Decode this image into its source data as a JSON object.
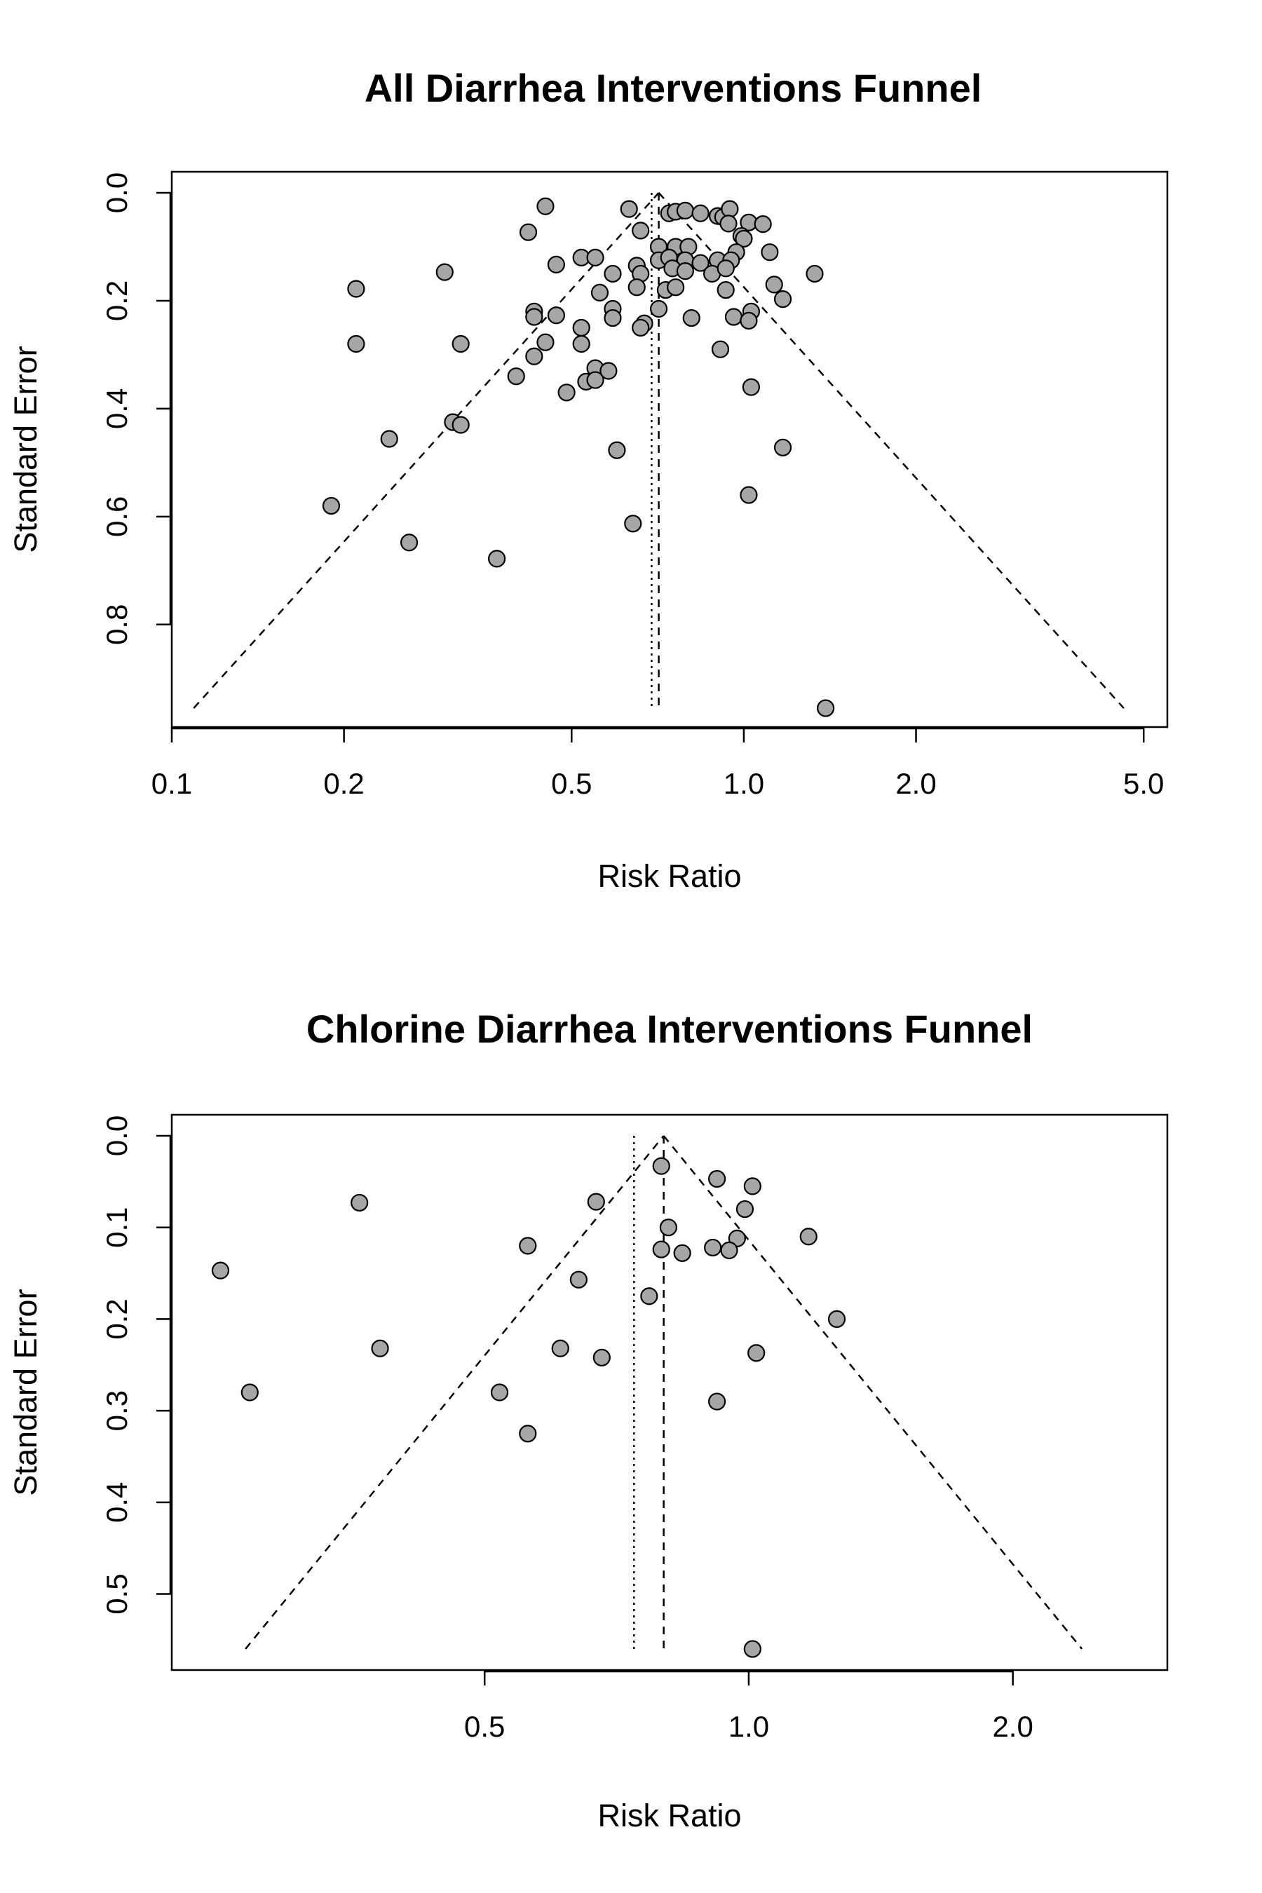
{
  "chart_data": [
    {
      "type": "scatter",
      "title": "All Diarrhea Interventions Funnel",
      "xlabel": "Risk Ratio",
      "ylabel": "Standard Error",
      "x_scale": "log",
      "y_reversed": true,
      "xlim": [
        0.1,
        5.5
      ],
      "ylim": [
        0,
        0.99
      ],
      "x_ticks": [
        0.1,
        0.2,
        0.5,
        1.0,
        2.0,
        5.0
      ],
      "x_tick_labels": [
        "0.1",
        "0.2",
        "0.5",
        "1.0",
        "2.0",
        "5.0"
      ],
      "y_ticks": [
        0.0,
        0.2,
        0.4,
        0.6,
        0.8
      ],
      "y_tick_labels": [
        "0.0",
        "0.2",
        "0.4",
        "0.6",
        "0.8"
      ],
      "pooled_estimate": 0.71,
      "reference_line": 0.69,
      "funnel_se_max": 0.955,
      "point_color": "#a6a6a6",
      "points": [
        {
          "x": 0.45,
          "y": 0.025
        },
        {
          "x": 0.63,
          "y": 0.03
        },
        {
          "x": 0.74,
          "y": 0.038
        },
        {
          "x": 0.76,
          "y": 0.035
        },
        {
          "x": 0.79,
          "y": 0.033
        },
        {
          "x": 0.84,
          "y": 0.038
        },
        {
          "x": 0.9,
          "y": 0.043
        },
        {
          "x": 0.92,
          "y": 0.045
        },
        {
          "x": 0.945,
          "y": 0.03
        },
        {
          "x": 0.94,
          "y": 0.057
        },
        {
          "x": 1.02,
          "y": 0.055
        },
        {
          "x": 1.08,
          "y": 0.058
        },
        {
          "x": 0.42,
          "y": 0.073
        },
        {
          "x": 0.66,
          "y": 0.07
        },
        {
          "x": 0.99,
          "y": 0.08
        },
        {
          "x": 1.0,
          "y": 0.085
        },
        {
          "x": 0.71,
          "y": 0.1
        },
        {
          "x": 0.76,
          "y": 0.1
        },
        {
          "x": 0.8,
          "y": 0.1
        },
        {
          "x": 0.97,
          "y": 0.11
        },
        {
          "x": 1.11,
          "y": 0.11
        },
        {
          "x": 0.52,
          "y": 0.12
        },
        {
          "x": 0.55,
          "y": 0.12
        },
        {
          "x": 0.71,
          "y": 0.125
        },
        {
          "x": 0.74,
          "y": 0.12
        },
        {
          "x": 0.79,
          "y": 0.125
        },
        {
          "x": 0.9,
          "y": 0.125
        },
        {
          "x": 0.95,
          "y": 0.125
        },
        {
          "x": 0.47,
          "y": 0.133
        },
        {
          "x": 0.65,
          "y": 0.135
        },
        {
          "x": 0.84,
          "y": 0.13
        },
        {
          "x": 0.3,
          "y": 0.147
        },
        {
          "x": 0.59,
          "y": 0.15
        },
        {
          "x": 0.66,
          "y": 0.15
        },
        {
          "x": 0.75,
          "y": 0.14
        },
        {
          "x": 0.79,
          "y": 0.145
        },
        {
          "x": 0.88,
          "y": 0.15
        },
        {
          "x": 0.93,
          "y": 0.14
        },
        {
          "x": 1.33,
          "y": 0.15
        },
        {
          "x": 0.21,
          "y": 0.178
        },
        {
          "x": 0.65,
          "y": 0.175
        },
        {
          "x": 0.73,
          "y": 0.18
        },
        {
          "x": 0.76,
          "y": 0.175
        },
        {
          "x": 0.93,
          "y": 0.18
        },
        {
          "x": 1.13,
          "y": 0.17
        },
        {
          "x": 0.56,
          "y": 0.185
        },
        {
          "x": 1.17,
          "y": 0.197
        },
        {
          "x": 0.71,
          "y": 0.215
        },
        {
          "x": 0.43,
          "y": 0.22
        },
        {
          "x": 0.59,
          "y": 0.215
        },
        {
          "x": 1.03,
          "y": 0.22
        },
        {
          "x": 0.43,
          "y": 0.23
        },
        {
          "x": 0.47,
          "y": 0.227
        },
        {
          "x": 0.59,
          "y": 0.232
        },
        {
          "x": 0.81,
          "y": 0.232
        },
        {
          "x": 0.96,
          "y": 0.23
        },
        {
          "x": 1.02,
          "y": 0.237
        },
        {
          "x": 0.67,
          "y": 0.242
        },
        {
          "x": 0.52,
          "y": 0.25
        },
        {
          "x": 0.66,
          "y": 0.25
        },
        {
          "x": 0.21,
          "y": 0.28
        },
        {
          "x": 0.32,
          "y": 0.28
        },
        {
          "x": 0.45,
          "y": 0.277
        },
        {
          "x": 0.52,
          "y": 0.28
        },
        {
          "x": 0.91,
          "y": 0.29
        },
        {
          "x": 0.43,
          "y": 0.303
        },
        {
          "x": 0.55,
          "y": 0.325
        },
        {
          "x": 0.58,
          "y": 0.33
        },
        {
          "x": 0.4,
          "y": 0.34
        },
        {
          "x": 0.53,
          "y": 0.35
        },
        {
          "x": 0.55,
          "y": 0.347
        },
        {
          "x": 0.49,
          "y": 0.37
        },
        {
          "x": 1.03,
          "y": 0.36
        },
        {
          "x": 0.31,
          "y": 0.425
        },
        {
          "x": 0.32,
          "y": 0.43
        },
        {
          "x": 0.24,
          "y": 0.456
        },
        {
          "x": 0.6,
          "y": 0.477
        },
        {
          "x": 1.17,
          "y": 0.472
        },
        {
          "x": 1.02,
          "y": 0.56
        },
        {
          "x": 0.19,
          "y": 0.58
        },
        {
          "x": 0.64,
          "y": 0.613
        },
        {
          "x": 0.26,
          "y": 0.648
        },
        {
          "x": 0.37,
          "y": 0.678
        },
        {
          "x": 1.39,
          "y": 0.955
        }
      ]
    },
    {
      "type": "scatter",
      "title": "Chlorine Diarrhea Interventions Funnel",
      "xlabel": "Risk Ratio",
      "ylabel": "Standard Error",
      "x_scale": "log",
      "y_reversed": true,
      "xlim": [
        0.22,
        3.0
      ],
      "ylim": [
        0,
        0.583
      ],
      "x_ticks": [
        0.5,
        1.0,
        2.0
      ],
      "x_tick_labels": [
        "0.5",
        "1.0",
        "2.0"
      ],
      "y_ticks": [
        0.0,
        0.1,
        0.2,
        0.3,
        0.4,
        0.5
      ],
      "y_tick_labels": [
        "0.0",
        "0.1",
        "0.2",
        "0.3",
        "0.4",
        "0.5"
      ],
      "pooled_estimate": 0.8,
      "reference_line": 0.74,
      "funnel_se_max": 0.56,
      "point_color": "#a6a6a6",
      "points": [
        {
          "x": 0.795,
          "y": 0.033
        },
        {
          "x": 0.92,
          "y": 0.047
        },
        {
          "x": 1.01,
          "y": 0.055
        },
        {
          "x": 0.36,
          "y": 0.073
        },
        {
          "x": 0.67,
          "y": 0.072
        },
        {
          "x": 0.99,
          "y": 0.08
        },
        {
          "x": 0.81,
          "y": 0.1
        },
        {
          "x": 0.97,
          "y": 0.112
        },
        {
          "x": 1.17,
          "y": 0.11
        },
        {
          "x": 0.56,
          "y": 0.12
        },
        {
          "x": 0.795,
          "y": 0.124
        },
        {
          "x": 0.84,
          "y": 0.128
        },
        {
          "x": 0.91,
          "y": 0.122
        },
        {
          "x": 0.95,
          "y": 0.125
        },
        {
          "x": 0.25,
          "y": 0.147
        },
        {
          "x": 0.64,
          "y": 0.157
        },
        {
          "x": 0.77,
          "y": 0.175
        },
        {
          "x": 1.26,
          "y": 0.2
        },
        {
          "x": 0.38,
          "y": 0.232
        },
        {
          "x": 0.61,
          "y": 0.232
        },
        {
          "x": 1.02,
          "y": 0.237
        },
        {
          "x": 0.68,
          "y": 0.242
        },
        {
          "x": 0.27,
          "y": 0.28
        },
        {
          "x": 0.52,
          "y": 0.28
        },
        {
          "x": 0.92,
          "y": 0.29
        },
        {
          "x": 0.56,
          "y": 0.325
        },
        {
          "x": 1.01,
          "y": 0.56
        }
      ]
    }
  ]
}
